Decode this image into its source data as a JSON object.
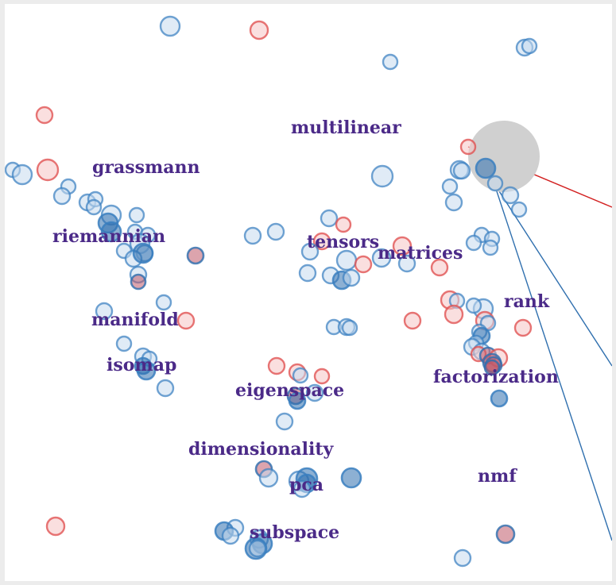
{
  "terms": [
    {
      "label": "multilinear"
    },
    {
      "label": "grassmann"
    },
    {
      "label": "riemannian"
    },
    {
      "label": "tensors"
    },
    {
      "label": "matrices"
    },
    {
      "label": "rank"
    },
    {
      "label": "manifold"
    },
    {
      "label": "isomap"
    },
    {
      "label": "eigenspace"
    },
    {
      "label": "factorization"
    },
    {
      "label": "dimensionality"
    },
    {
      "label": "pca"
    },
    {
      "label": "nmf"
    },
    {
      "label": "subspace"
    }
  ],
  "colors": {
    "blue_fill": "#c6dbef",
    "blue_stroke": "#3a7fc0",
    "blue_dark": "#2f6fae",
    "red_fill": "#f6c4c4",
    "red_stroke": "#e05050",
    "focus": "#d0d0d0",
    "label": "#4b2a88",
    "link_red": "#d21f1f",
    "link_blue": "#2f6fae"
  }
}
